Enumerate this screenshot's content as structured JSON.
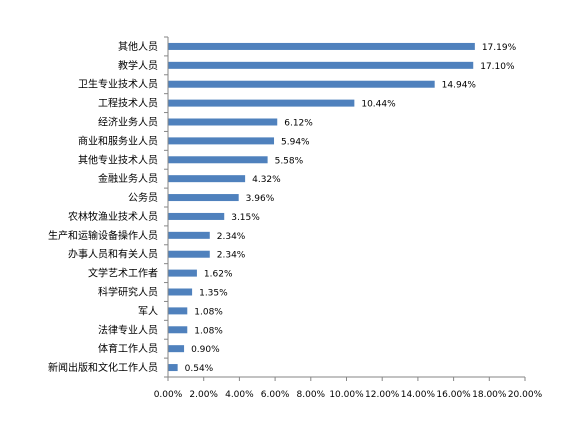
{
  "chart_data": {
    "type": "bar",
    "orientation": "horizontal",
    "categories": [
      "其他人员",
      "教学人员",
      "卫生专业技术人员",
      "工程技术人员",
      "经济业务人员",
      "商业和服务业人员",
      "其他专业技术人员",
      "金融业务人员",
      "公务员",
      "农林牧渔业技术人员",
      "生产和运输设备操作人员",
      "办事人员和有关人员",
      "文学艺术工作者",
      "科学研究人员",
      "军人",
      "法律专业人员",
      "体育工作人员",
      "新闻出版和文化工作人员"
    ],
    "values": [
      17.19,
      17.1,
      14.94,
      10.44,
      6.12,
      5.94,
      5.58,
      4.32,
      3.96,
      3.15,
      2.34,
      2.34,
      1.62,
      1.35,
      1.08,
      1.08,
      0.9,
      0.54
    ],
    "data_labels": [
      "17.19%",
      "17.10%",
      "14.94%",
      "10.44%",
      "6.12%",
      "5.94%",
      "5.58%",
      "4.32%",
      "3.96%",
      "3.15%",
      "2.34%",
      "2.34%",
      "1.62%",
      "1.35%",
      "1.08%",
      "1.08%",
      "0.90%",
      "0.54%"
    ],
    "xlim": [
      0,
      20
    ],
    "x_ticks": [
      0,
      2,
      4,
      6,
      8,
      10,
      12,
      14,
      16,
      18,
      20
    ],
    "x_tick_labels": [
      "0.00%",
      "2.00%",
      "4.00%",
      "6.00%",
      "8.00%",
      "10.00%",
      "12.00%",
      "14.00%",
      "16.00%",
      "18.00%",
      "20.00%"
    ],
    "grid": false,
    "legend": "none",
    "bar_color": "#4f81bd",
    "axis_color": "#868686"
  }
}
